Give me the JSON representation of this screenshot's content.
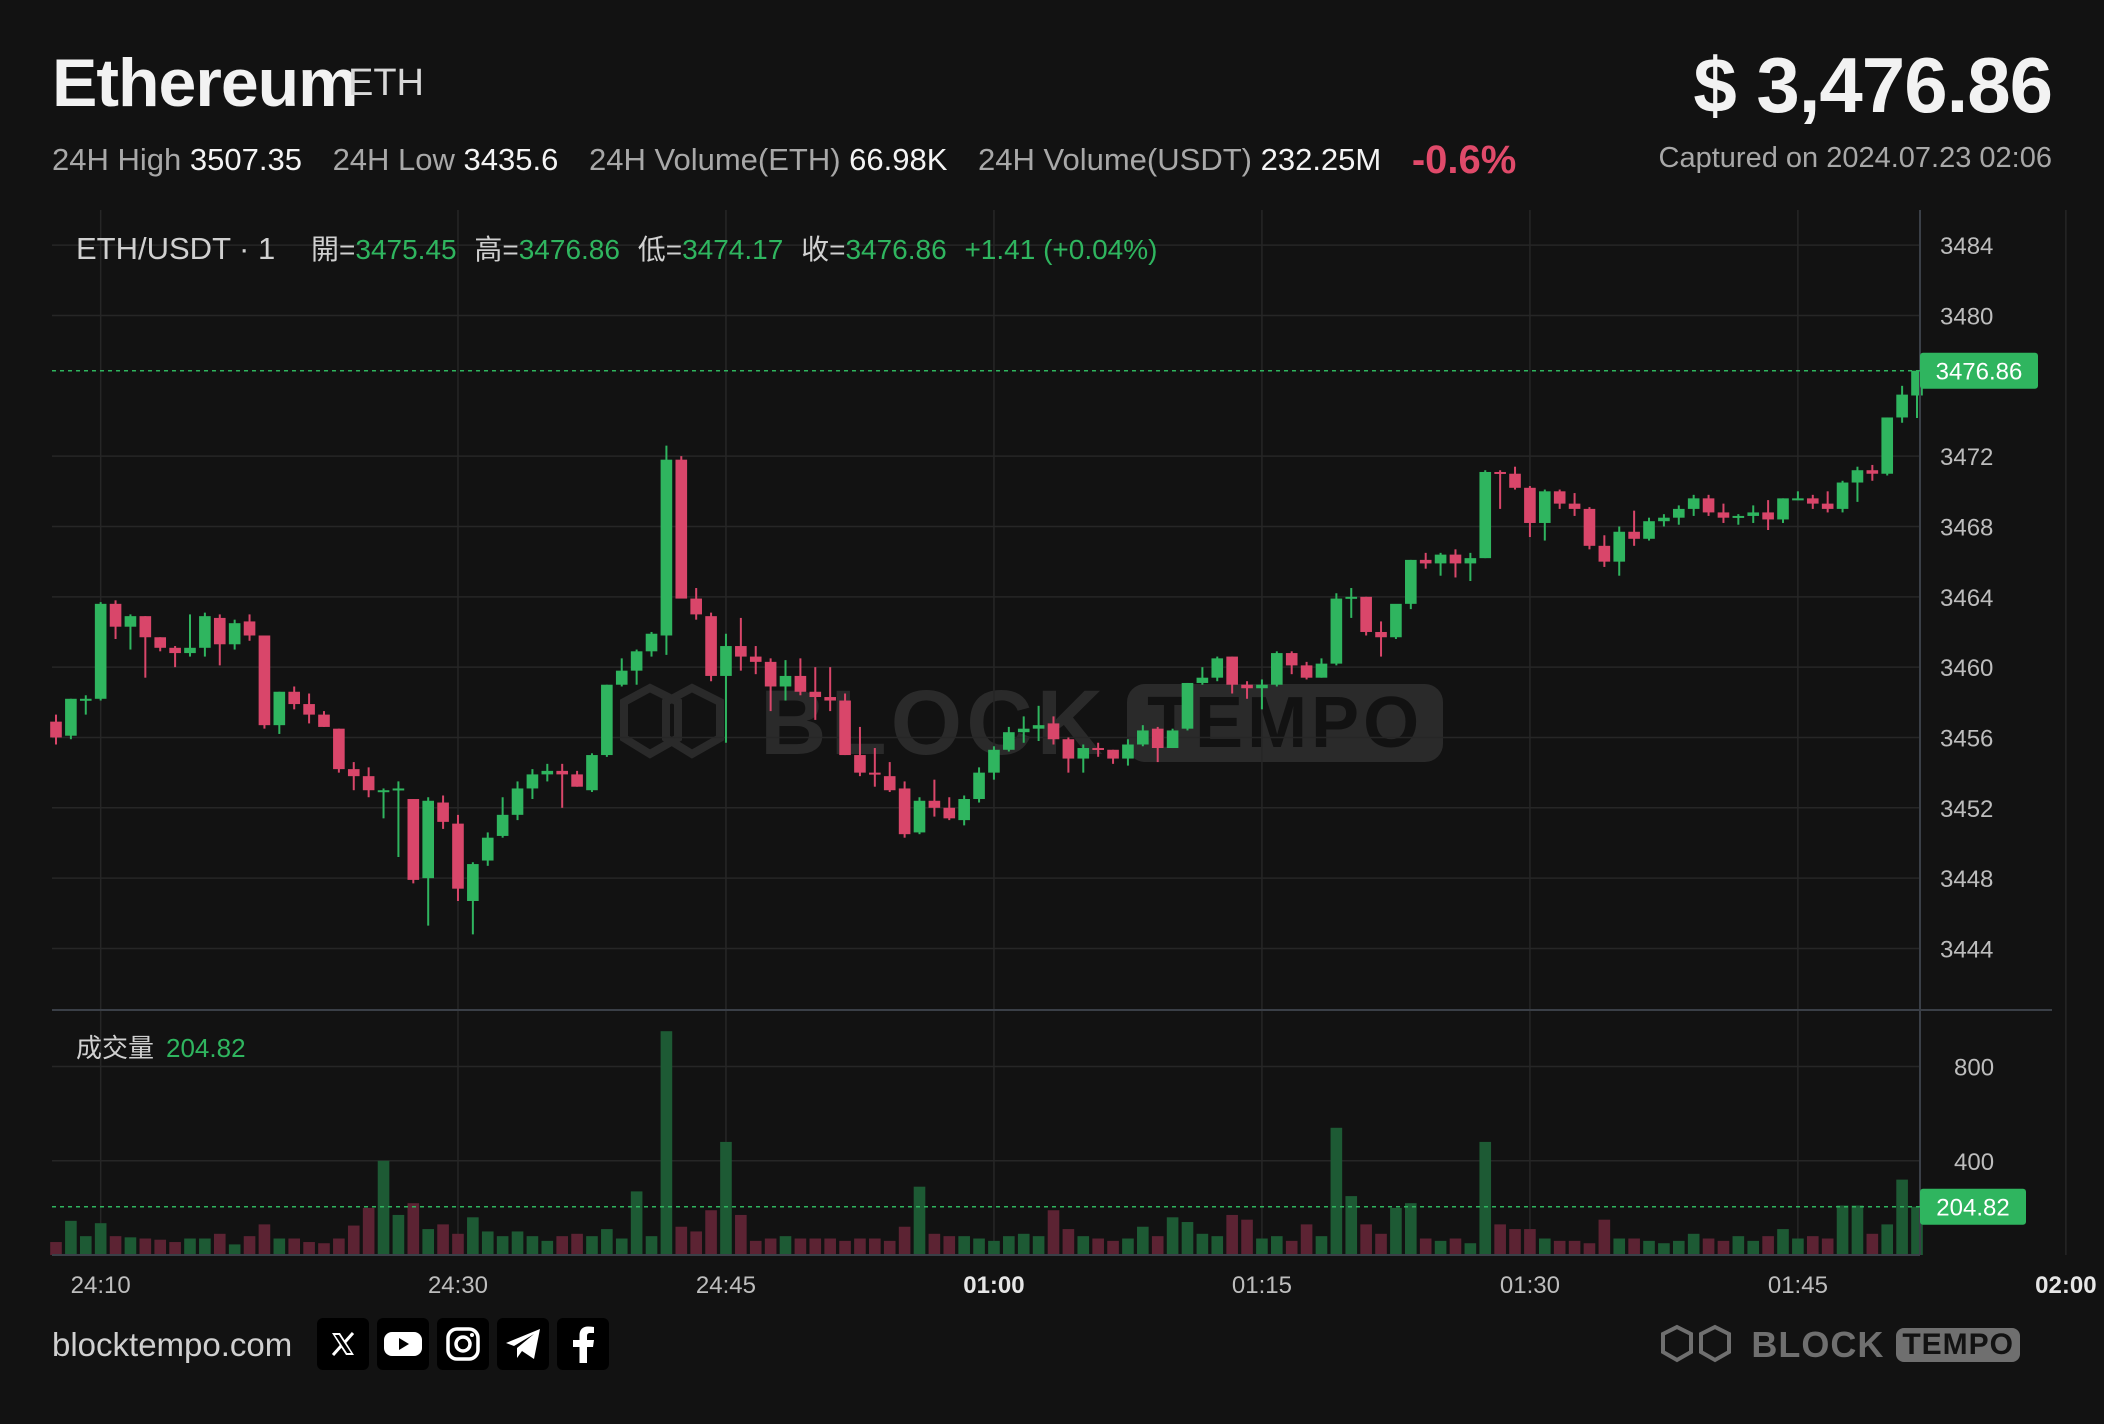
{
  "header": {
    "name": "Ethereum",
    "symbol": "ETH",
    "price": "$ 3,476.86",
    "stats": [
      {
        "label": "24H High",
        "value": "3507.35"
      },
      {
        "label": "24H Low",
        "value": "3435.6"
      },
      {
        "label": "24H Volume(ETH)",
        "value": "66.98K"
      },
      {
        "label": "24H Volume(USDT)",
        "value": "232.25M"
      }
    ],
    "change": "-0.6%",
    "captured": "Captured on 2024.07.23 02:06"
  },
  "legend": {
    "pair": "ETH/USDT · 1",
    "open_label": "開=",
    "open": "3475.45",
    "high_label": "高=",
    "high": "3476.86",
    "low_label": "低=",
    "low": "3474.17",
    "close_label": "收=",
    "close": "3476.86",
    "change": "+1.41 (+0.04%)",
    "volume_label": "成交量",
    "volume": "204.82"
  },
  "footer": {
    "site": "blocktempo.com",
    "social_icons": [
      "x-icon",
      "youtube-icon",
      "instagram-icon",
      "telegram-icon",
      "facebook-icon"
    ],
    "watermark_left": "BLOCK",
    "watermark_right": "TEMPO"
  },
  "colors": {
    "up": "#2fb55f",
    "down": "#d9466a",
    "up_volume": "#1d5a34",
    "down_volume": "#5c2333",
    "background": "#121212"
  },
  "chart_data": {
    "type": "candlestick",
    "interval": "1m",
    "x_ticks": [
      "24:10",
      "24:30",
      "24:45",
      "01:00",
      "01:15",
      "01:30",
      "01:45",
      "02:00"
    ],
    "x_ticks_bold": [
      "01:00",
      "02:00"
    ],
    "y_ticks": [
      3444,
      3448,
      3452,
      3456,
      3460,
      3464,
      3468,
      3472,
      3480,
      3484
    ],
    "y_range": [
      3440.5,
      3486
    ],
    "last_price": 3476.86,
    "last_price_label": "3476.86",
    "volume_ticks": [
      400,
      800
    ],
    "volume_range": [
      0,
      1040
    ],
    "last_volume": 204.82,
    "last_volume_label": "204.82",
    "candles": [
      {
        "o": 3456.9,
        "h": 3457.3,
        "l": 3455.6,
        "c": 3456.0,
        "v": 55
      },
      {
        "o": 3456.1,
        "h": 3458.2,
        "l": 3455.9,
        "c": 3458.2,
        "v": 145
      },
      {
        "o": 3458.2,
        "h": 3458.4,
        "l": 3457.3,
        "c": 3458.2,
        "v": 80
      },
      {
        "o": 3458.2,
        "h": 3463.7,
        "l": 3458.1,
        "c": 3463.6,
        "v": 135
      },
      {
        "o": 3463.6,
        "h": 3463.8,
        "l": 3461.6,
        "c": 3462.3,
        "v": 80
      },
      {
        "o": 3462.3,
        "h": 3463.0,
        "l": 3461.0,
        "c": 3462.9,
        "v": 75
      },
      {
        "o": 3462.9,
        "h": 3462.9,
        "l": 3459.4,
        "c": 3461.7,
        "v": 70
      },
      {
        "o": 3461.7,
        "h": 3461.7,
        "l": 3460.9,
        "c": 3461.1,
        "v": 65
      },
      {
        "o": 3461.1,
        "h": 3461.2,
        "l": 3460.0,
        "c": 3460.8,
        "v": 55
      },
      {
        "o": 3460.8,
        "h": 3463.0,
        "l": 3460.6,
        "c": 3461.1,
        "v": 70
      },
      {
        "o": 3461.1,
        "h": 3463.1,
        "l": 3460.6,
        "c": 3462.9,
        "v": 70
      },
      {
        "o": 3462.8,
        "h": 3463.0,
        "l": 3460.1,
        "c": 3461.3,
        "v": 90
      },
      {
        "o": 3461.3,
        "h": 3462.7,
        "l": 3461.0,
        "c": 3462.5,
        "v": 45
      },
      {
        "o": 3462.6,
        "h": 3463.0,
        "l": 3461.5,
        "c": 3461.8,
        "v": 80
      },
      {
        "o": 3461.8,
        "h": 3461.8,
        "l": 3456.5,
        "c": 3456.7,
        "v": 130
      },
      {
        "o": 3456.7,
        "h": 3458.6,
        "l": 3456.2,
        "c": 3458.6,
        "v": 70
      },
      {
        "o": 3458.6,
        "h": 3458.9,
        "l": 3457.6,
        "c": 3457.9,
        "v": 70
      },
      {
        "o": 3457.9,
        "h": 3458.5,
        "l": 3456.8,
        "c": 3457.3,
        "v": 55
      },
      {
        "o": 3457.3,
        "h": 3457.5,
        "l": 3456.6,
        "c": 3456.6,
        "v": 50
      },
      {
        "o": 3456.5,
        "h": 3456.5,
        "l": 3454.0,
        "c": 3454.2,
        "v": 70
      },
      {
        "o": 3454.2,
        "h": 3454.6,
        "l": 3453.0,
        "c": 3453.8,
        "v": 125
      },
      {
        "o": 3453.8,
        "h": 3454.3,
        "l": 3452.6,
        "c": 3453.0,
        "v": 200
      },
      {
        "o": 3453.0,
        "h": 3453.1,
        "l": 3451.4,
        "c": 3453.0,
        "v": 400
      },
      {
        "o": 3453.1,
        "h": 3453.5,
        "l": 3449.2,
        "c": 3453.1,
        "v": 170
      },
      {
        "o": 3452.5,
        "h": 3452.5,
        "l": 3447.7,
        "c": 3447.9,
        "v": 220
      },
      {
        "o": 3448.0,
        "h": 3452.6,
        "l": 3445.3,
        "c": 3452.4,
        "v": 110
      },
      {
        "o": 3452.3,
        "h": 3452.7,
        "l": 3450.8,
        "c": 3451.2,
        "v": 130
      },
      {
        "o": 3451.1,
        "h": 3451.6,
        "l": 3446.7,
        "c": 3447.4,
        "v": 90
      },
      {
        "o": 3446.7,
        "h": 3448.9,
        "l": 3444.8,
        "c": 3448.8,
        "v": 160
      },
      {
        "o": 3449.0,
        "h": 3450.6,
        "l": 3448.7,
        "c": 3450.3,
        "v": 100
      },
      {
        "o": 3450.4,
        "h": 3452.6,
        "l": 3450.3,
        "c": 3451.6,
        "v": 80
      },
      {
        "o": 3451.6,
        "h": 3453.5,
        "l": 3451.3,
        "c": 3453.1,
        "v": 100
      },
      {
        "o": 3453.1,
        "h": 3454.2,
        "l": 3452.5,
        "c": 3453.9,
        "v": 80
      },
      {
        "o": 3453.9,
        "h": 3454.5,
        "l": 3453.5,
        "c": 3454.1,
        "v": 60
      },
      {
        "o": 3454.1,
        "h": 3454.5,
        "l": 3452.0,
        "c": 3453.9,
        "v": 80
      },
      {
        "o": 3453.9,
        "h": 3454.1,
        "l": 3453.2,
        "c": 3453.2,
        "v": 90
      },
      {
        "o": 3453.0,
        "h": 3455.1,
        "l": 3452.9,
        "c": 3455.0,
        "v": 80
      },
      {
        "o": 3455.0,
        "h": 3459.0,
        "l": 3454.9,
        "c": 3459.0,
        "v": 110
      },
      {
        "o": 3459.0,
        "h": 3460.5,
        "l": 3458.9,
        "c": 3459.8,
        "v": 70
      },
      {
        "o": 3459.8,
        "h": 3461.0,
        "l": 3459.0,
        "c": 3460.9,
        "v": 270
      },
      {
        "o": 3460.9,
        "h": 3462.0,
        "l": 3460.6,
        "c": 3461.9,
        "v": 80
      },
      {
        "o": 3461.8,
        "h": 3472.6,
        "l": 3460.7,
        "c": 3471.8,
        "v": 950
      },
      {
        "o": 3471.8,
        "h": 3472.0,
        "l": 3464.0,
        "c": 3463.9,
        "v": 120
      },
      {
        "o": 3463.9,
        "h": 3464.5,
        "l": 3462.7,
        "c": 3463.0,
        "v": 100
      },
      {
        "o": 3462.9,
        "h": 3463.1,
        "l": 3459.2,
        "c": 3459.5,
        "v": 190
      },
      {
        "o": 3459.5,
        "h": 3461.9,
        "l": 3455.7,
        "c": 3461.2,
        "v": 480
      },
      {
        "o": 3461.2,
        "h": 3462.8,
        "l": 3459.8,
        "c": 3460.6,
        "v": 170
      },
      {
        "o": 3460.6,
        "h": 3461.2,
        "l": 3459.6,
        "c": 3460.3,
        "v": 60
      },
      {
        "o": 3460.3,
        "h": 3460.5,
        "l": 3457.5,
        "c": 3458.9,
        "v": 70
      },
      {
        "o": 3458.9,
        "h": 3460.4,
        "l": 3458.1,
        "c": 3459.5,
        "v": 80
      },
      {
        "o": 3459.5,
        "h": 3460.5,
        "l": 3458.4,
        "c": 3458.6,
        "v": 70
      },
      {
        "o": 3458.6,
        "h": 3460.0,
        "l": 3457.0,
        "c": 3458.3,
        "v": 70
      },
      {
        "o": 3458.3,
        "h": 3460.0,
        "l": 3457.5,
        "c": 3458.1,
        "v": 70
      },
      {
        "o": 3458.1,
        "h": 3458.5,
        "l": 3455.0,
        "c": 3455.0,
        "v": 60
      },
      {
        "o": 3455.0,
        "h": 3456.6,
        "l": 3453.8,
        "c": 3454.0,
        "v": 70
      },
      {
        "o": 3454.0,
        "h": 3455.4,
        "l": 3453.2,
        "c": 3453.9,
        "v": 70
      },
      {
        "o": 3453.8,
        "h": 3454.6,
        "l": 3452.9,
        "c": 3453.0,
        "v": 60
      },
      {
        "o": 3453.1,
        "h": 3453.5,
        "l": 3450.3,
        "c": 3450.5,
        "v": 120
      },
      {
        "o": 3450.6,
        "h": 3452.6,
        "l": 3450.5,
        "c": 3452.4,
        "v": 290
      },
      {
        "o": 3452.4,
        "h": 3453.6,
        "l": 3451.5,
        "c": 3452.0,
        "v": 90
      },
      {
        "o": 3452.0,
        "h": 3452.6,
        "l": 3451.3,
        "c": 3451.4,
        "v": 80
      },
      {
        "o": 3451.3,
        "h": 3452.7,
        "l": 3451.0,
        "c": 3452.5,
        "v": 80
      },
      {
        "o": 3452.5,
        "h": 3454.3,
        "l": 3452.3,
        "c": 3454.0,
        "v": 70
      },
      {
        "o": 3454.0,
        "h": 3455.5,
        "l": 3453.6,
        "c": 3455.3,
        "v": 60
      },
      {
        "o": 3455.3,
        "h": 3456.6,
        "l": 3455.2,
        "c": 3456.3,
        "v": 80
      },
      {
        "o": 3456.3,
        "h": 3457.2,
        "l": 3455.7,
        "c": 3456.5,
        "v": 90
      },
      {
        "o": 3456.5,
        "h": 3457.8,
        "l": 3455.8,
        "c": 3456.7,
        "v": 80
      },
      {
        "o": 3456.8,
        "h": 3457.2,
        "l": 3455.6,
        "c": 3455.9,
        "v": 190
      },
      {
        "o": 3455.9,
        "h": 3456.0,
        "l": 3454.0,
        "c": 3454.8,
        "v": 110
      },
      {
        "o": 3454.8,
        "h": 3455.6,
        "l": 3454.0,
        "c": 3455.4,
        "v": 80
      },
      {
        "o": 3455.4,
        "h": 3455.7,
        "l": 3454.9,
        "c": 3455.3,
        "v": 70
      },
      {
        "o": 3455.3,
        "h": 3455.3,
        "l": 3454.5,
        "c": 3454.8,
        "v": 60
      },
      {
        "o": 3454.8,
        "h": 3455.9,
        "l": 3454.4,
        "c": 3455.6,
        "v": 70
      },
      {
        "o": 3455.6,
        "h": 3456.7,
        "l": 3455.5,
        "c": 3456.4,
        "v": 120
      },
      {
        "o": 3456.5,
        "h": 3456.6,
        "l": 3454.6,
        "c": 3455.4,
        "v": 80
      },
      {
        "o": 3455.4,
        "h": 3456.5,
        "l": 3455.4,
        "c": 3456.4,
        "v": 160
      },
      {
        "o": 3456.5,
        "h": 3459.1,
        "l": 3456.4,
        "c": 3459.1,
        "v": 140
      },
      {
        "o": 3459.1,
        "h": 3460.0,
        "l": 3459.0,
        "c": 3459.4,
        "v": 90
      },
      {
        "o": 3459.4,
        "h": 3460.6,
        "l": 3459.2,
        "c": 3460.5,
        "v": 80
      },
      {
        "o": 3460.6,
        "h": 3460.6,
        "l": 3458.5,
        "c": 3459.0,
        "v": 170
      },
      {
        "o": 3459.0,
        "h": 3459.2,
        "l": 3458.2,
        "c": 3458.8,
        "v": 150
      },
      {
        "o": 3458.8,
        "h": 3459.3,
        "l": 3457.6,
        "c": 3459.0,
        "v": 70
      },
      {
        "o": 3459.0,
        "h": 3460.9,
        "l": 3458.9,
        "c": 3460.8,
        "v": 80
      },
      {
        "o": 3460.8,
        "h": 3460.9,
        "l": 3459.6,
        "c": 3460.1,
        "v": 60
      },
      {
        "o": 3460.1,
        "h": 3460.3,
        "l": 3459.3,
        "c": 3459.4,
        "v": 130
      },
      {
        "o": 3459.4,
        "h": 3460.5,
        "l": 3459.4,
        "c": 3460.2,
        "v": 80
      },
      {
        "o": 3460.2,
        "h": 3464.2,
        "l": 3460.1,
        "c": 3463.9,
        "v": 540
      },
      {
        "o": 3463.9,
        "h": 3464.5,
        "l": 3462.8,
        "c": 3464.0,
        "v": 250
      },
      {
        "o": 3464.0,
        "h": 3464.0,
        "l": 3461.8,
        "c": 3462.0,
        "v": 130
      },
      {
        "o": 3462.0,
        "h": 3462.6,
        "l": 3460.6,
        "c": 3461.7,
        "v": 90
      },
      {
        "o": 3461.7,
        "h": 3463.4,
        "l": 3461.6,
        "c": 3463.6,
        "v": 200
      },
      {
        "o": 3463.6,
        "h": 3466.1,
        "l": 3463.3,
        "c": 3466.1,
        "v": 220
      },
      {
        "o": 3466.1,
        "h": 3466.5,
        "l": 3465.6,
        "c": 3465.9,
        "v": 70
      },
      {
        "o": 3465.9,
        "h": 3466.5,
        "l": 3465.2,
        "c": 3466.4,
        "v": 60
      },
      {
        "o": 3466.4,
        "h": 3466.7,
        "l": 3465.1,
        "c": 3465.9,
        "v": 70
      },
      {
        "o": 3465.9,
        "h": 3466.5,
        "l": 3464.9,
        "c": 3466.2,
        "v": 50
      },
      {
        "o": 3466.2,
        "h": 3471.2,
        "l": 3466.2,
        "c": 3471.1,
        "v": 480
      },
      {
        "o": 3471.1,
        "h": 3471.2,
        "l": 3469.0,
        "c": 3471.0,
        "v": 130
      },
      {
        "o": 3471.0,
        "h": 3471.4,
        "l": 3470.1,
        "c": 3470.2,
        "v": 110
      },
      {
        "o": 3470.2,
        "h": 3470.3,
        "l": 3467.4,
        "c": 3468.2,
        "v": 110
      },
      {
        "o": 3468.2,
        "h": 3470.1,
        "l": 3467.2,
        "c": 3470.0,
        "v": 70
      },
      {
        "o": 3470.0,
        "h": 3470.1,
        "l": 3469.0,
        "c": 3469.3,
        "v": 60
      },
      {
        "o": 3469.3,
        "h": 3469.9,
        "l": 3468.6,
        "c": 3469.0,
        "v": 60
      },
      {
        "o": 3469.0,
        "h": 3469.1,
        "l": 3466.7,
        "c": 3466.9,
        "v": 50
      },
      {
        "o": 3466.9,
        "h": 3467.5,
        "l": 3465.7,
        "c": 3466.0,
        "v": 150
      },
      {
        "o": 3466.0,
        "h": 3468.0,
        "l": 3465.2,
        "c": 3467.7,
        "v": 70
      },
      {
        "o": 3467.7,
        "h": 3468.9,
        "l": 3466.9,
        "c": 3467.3,
        "v": 70
      },
      {
        "o": 3467.3,
        "h": 3468.5,
        "l": 3467.2,
        "c": 3468.3,
        "v": 60
      },
      {
        "o": 3468.3,
        "h": 3468.7,
        "l": 3468.0,
        "c": 3468.5,
        "v": 50
      },
      {
        "o": 3468.5,
        "h": 3469.2,
        "l": 3468.1,
        "c": 3469.0,
        "v": 60
      },
      {
        "o": 3469.0,
        "h": 3469.8,
        "l": 3468.6,
        "c": 3469.6,
        "v": 90
      },
      {
        "o": 3469.6,
        "h": 3469.8,
        "l": 3468.6,
        "c": 3468.8,
        "v": 70
      },
      {
        "o": 3468.8,
        "h": 3469.3,
        "l": 3468.2,
        "c": 3468.5,
        "v": 60
      },
      {
        "o": 3468.5,
        "h": 3468.7,
        "l": 3468.1,
        "c": 3468.6,
        "v": 80
      },
      {
        "o": 3468.6,
        "h": 3469.2,
        "l": 3468.2,
        "c": 3468.8,
        "v": 60
      },
      {
        "o": 3468.8,
        "h": 3469.5,
        "l": 3467.8,
        "c": 3468.4,
        "v": 80
      },
      {
        "o": 3468.4,
        "h": 3469.6,
        "l": 3468.2,
        "c": 3469.6,
        "v": 110
      },
      {
        "o": 3469.6,
        "h": 3470.0,
        "l": 3469.5,
        "c": 3469.6,
        "v": 70
      },
      {
        "o": 3469.6,
        "h": 3469.8,
        "l": 3469.0,
        "c": 3469.3,
        "v": 80
      },
      {
        "o": 3469.3,
        "h": 3470.0,
        "l": 3468.8,
        "c": 3469.0,
        "v": 70
      },
      {
        "o": 3469.0,
        "h": 3470.6,
        "l": 3468.8,
        "c": 3470.5,
        "v": 210
      },
      {
        "o": 3470.5,
        "h": 3471.4,
        "l": 3469.4,
        "c": 3471.2,
        "v": 210
      },
      {
        "o": 3471.2,
        "h": 3471.5,
        "l": 3470.6,
        "c": 3471.0,
        "v": 90
      },
      {
        "o": 3471.0,
        "h": 3474.2,
        "l": 3470.9,
        "c": 3474.2,
        "v": 130
      },
      {
        "o": 3474.2,
        "h": 3476.0,
        "l": 3473.9,
        "c": 3475.5,
        "v": 320
      },
      {
        "o": 3475.45,
        "h": 3476.86,
        "l": 3474.17,
        "c": 3476.86,
        "v": 204.82
      }
    ]
  }
}
